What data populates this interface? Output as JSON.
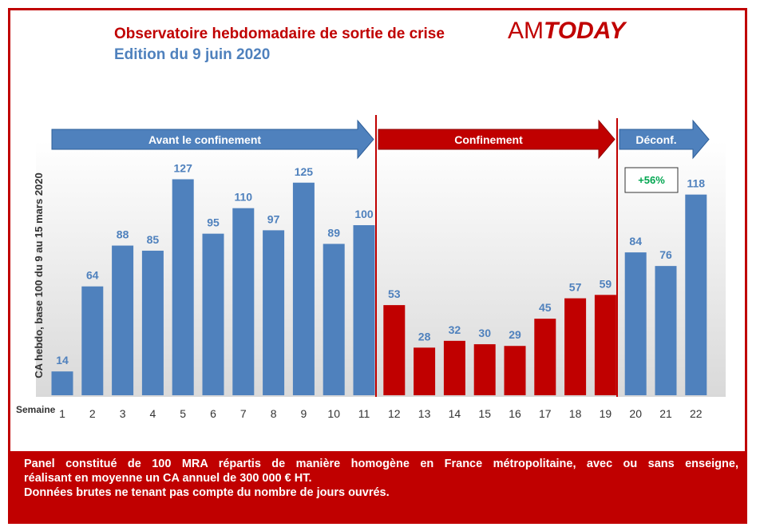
{
  "header": {
    "title": "Observatoire hebdomadaire de sortie de crise",
    "subtitle": "Edition du 9 juin 2020",
    "logo_am": "AM",
    "logo_today": "TODAY"
  },
  "colors": {
    "blue": "#4f81bd",
    "red": "#c00000",
    "green": "#00a650"
  },
  "chart_data": {
    "type": "bar",
    "ylabel": "CA hebdo, base 100 du 9 au 15 mars 2020",
    "xlabel": "Semaine",
    "categories": [
      "1",
      "2",
      "3",
      "4",
      "5",
      "6",
      "7",
      "8",
      "9",
      "10",
      "11",
      "12",
      "13",
      "14",
      "15",
      "16",
      "17",
      "18",
      "19",
      "20",
      "21",
      "22"
    ],
    "values": [
      14,
      64,
      88,
      85,
      127,
      95,
      110,
      97,
      125,
      89,
      100,
      53,
      28,
      32,
      30,
      29,
      45,
      57,
      59,
      84,
      76,
      118
    ],
    "bar_colors": [
      "blue",
      "blue",
      "blue",
      "blue",
      "blue",
      "blue",
      "blue",
      "blue",
      "blue",
      "blue",
      "blue",
      "red",
      "red",
      "red",
      "red",
      "red",
      "red",
      "red",
      "red",
      "blue",
      "blue",
      "blue"
    ],
    "phases": [
      {
        "label": "Avant le confinement",
        "color": "blue",
        "weeks": [
          1,
          11
        ]
      },
      {
        "label": "Confinement",
        "color": "red",
        "weeks": [
          12,
          19
        ]
      },
      {
        "label": "Déconf.",
        "color": "blue",
        "weeks": [
          20,
          22
        ]
      }
    ],
    "annotation": {
      "text": "+56%",
      "color": "green",
      "week": 20
    },
    "grid": false
  },
  "footer": {
    "line1": "Panel constitué de 100 MRA répartis de manière homogène en France métropolitaine, avec ou sans enseigne,",
    "line2": "réalisant en moyenne un CA annuel de 300 000 € HT.",
    "line3": "Données brutes ne tenant pas compte du nombre de jours ouvrés."
  }
}
